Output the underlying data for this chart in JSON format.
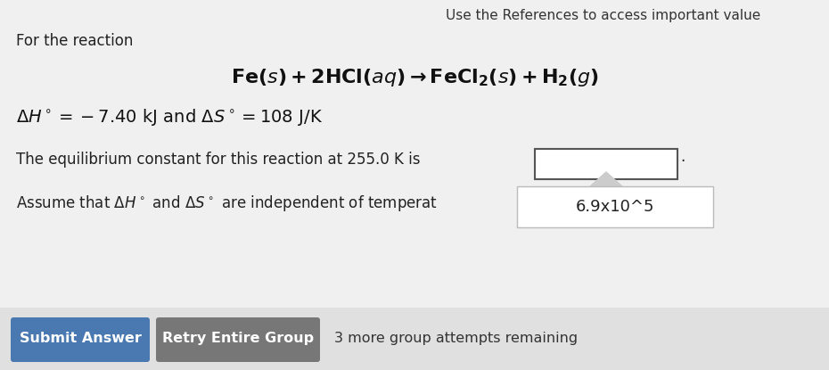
{
  "bg_color": "#f0f0f0",
  "top_text": "Use the References to access important value",
  "for_reaction_text": "For the reaction",
  "answer_value": "6.9x10^5",
  "submit_btn_text": "Submit Answer",
  "submit_btn_color": "#4a78b0",
  "retry_btn_text": "Retry Entire Group",
  "retry_btn_color": "#777777",
  "attempts_text": "3 more group attempts remaining",
  "period_text": "."
}
